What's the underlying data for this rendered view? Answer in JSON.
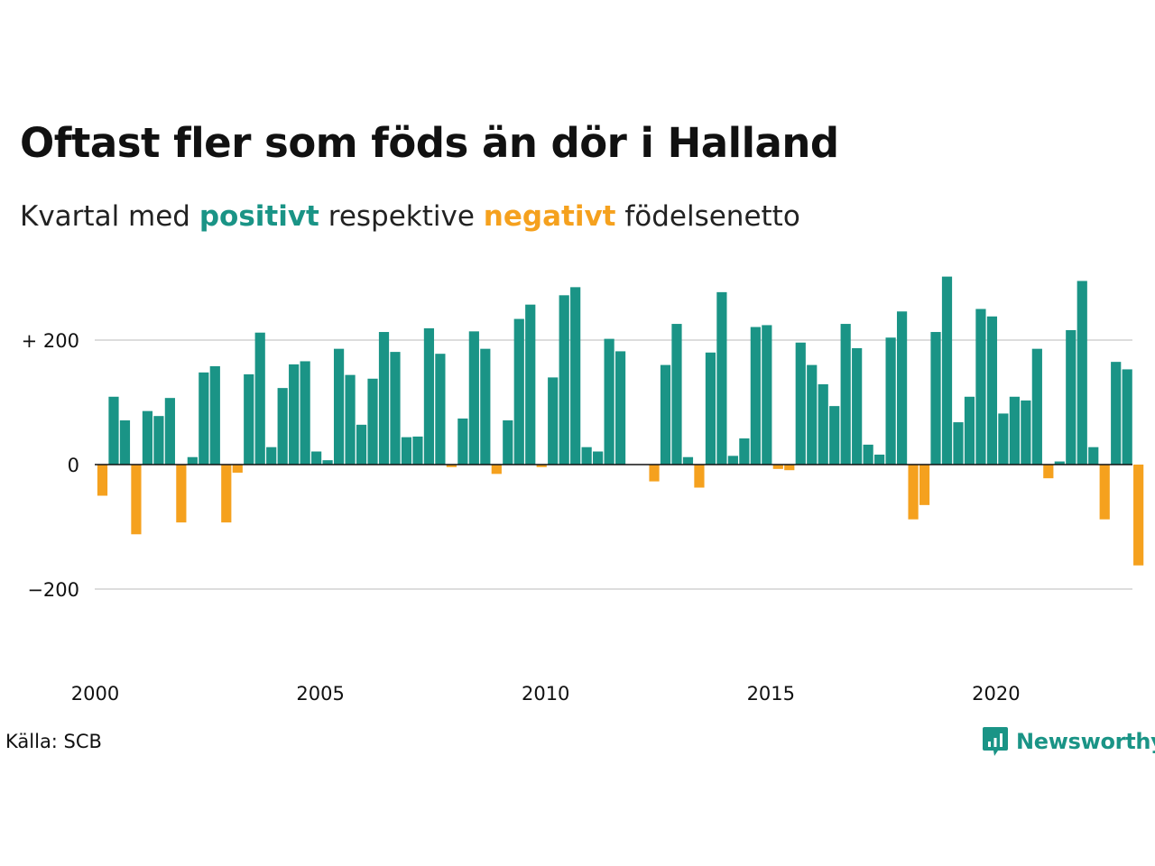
{
  "header": {
    "title": "Oftast fler som föds än dör i Halland",
    "subtitle_prefix": "Kvartal med",
    "subtitle_positive": "positivt",
    "subtitle_middle": "respektive",
    "subtitle_negative": "negativt",
    "subtitle_suffix": "födelsenetto"
  },
  "footer": {
    "source": "Källa: SCB",
    "brand": "Newsworthy"
  },
  "colors": {
    "positive": "#1a9486",
    "negative": "#f5a11e",
    "gridline": "#dddddd",
    "zeroline": "#111111"
  },
  "chart_data": {
    "type": "bar",
    "x_unit": "quarter",
    "start": "2000 Q1",
    "end": "2023 Q1",
    "ylim": [
      -300,
      300
    ],
    "y_ticks": [
      {
        "value": 200,
        "label": "+ 200"
      },
      {
        "value": 0,
        "label": "0"
      },
      {
        "value": -200,
        "label": "−200"
      }
    ],
    "x_ticks": [
      {
        "year": 2000,
        "label": "2000"
      },
      {
        "year": 2005,
        "label": "2005"
      },
      {
        "year": 2010,
        "label": "2010"
      },
      {
        "year": 2015,
        "label": "2015"
      },
      {
        "year": 2020,
        "label": "2020"
      }
    ],
    "grid": true,
    "legend": "none",
    "values": [
      -50,
      109,
      71,
      -112,
      86,
      78,
      107,
      -93,
      12,
      148,
      158,
      -93,
      -13,
      145,
      212,
      28,
      123,
      161,
      166,
      21,
      7,
      186,
      144,
      64,
      138,
      213,
      181,
      44,
      45,
      219,
      178,
      -4,
      74,
      214,
      186,
      -15,
      71,
      234,
      257,
      -4,
      140,
      272,
      285,
      28,
      21,
      202,
      182,
      0,
      0,
      -27,
      160,
      226,
      12,
      -37,
      180,
      277,
      14,
      42,
      221,
      224,
      -7,
      -9,
      196,
      160,
      129,
      94,
      226,
      187,
      32,
      16,
      204,
      246,
      -88,
      -65,
      213,
      302,
      68,
      109,
      250,
      238,
      82,
      109,
      103,
      186,
      -22,
      5,
      216,
      295,
      28,
      -88,
      165,
      153,
      -162
    ]
  }
}
